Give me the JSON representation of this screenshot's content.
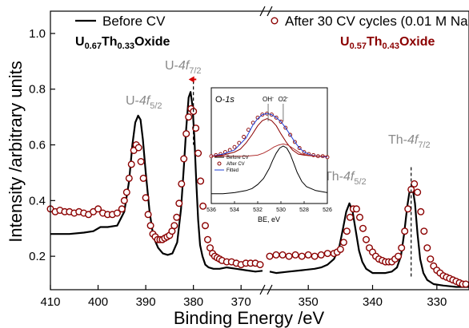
{
  "chart_data": {
    "type": "line",
    "xlabel": "Binding Energy /eV",
    "ylabel": "Intensity /arbitrary units",
    "x_reversed": true,
    "x_axis_break": [
      365.5,
      356
    ],
    "xlim": [
      410,
      325
    ],
    "ylim": [
      0.08,
      1.08
    ],
    "x_ticks": [
      410,
      400,
      390,
      380,
      370,
      350,
      340,
      330
    ],
    "y_ticks": [
      0.2,
      0.4,
      0.6,
      0.8,
      1.0
    ],
    "legend": {
      "position": "top",
      "entries": [
        "Before CV",
        "After 30 CV cycles (0.01 M NaCl)"
      ]
    },
    "series": [
      {
        "name": "Before CV",
        "style": "line",
        "color": "#000000",
        "x": [
          410,
          406,
          403,
          401,
          399.5,
          398,
          396,
          394.5,
          393.5,
          392.8,
          392.2,
          391.6,
          391.1,
          390.6,
          390,
          389.2,
          388.4,
          387.4,
          386.4,
          385.4,
          384.4,
          383.4,
          382.6,
          382,
          381.5,
          381,
          380.6,
          380.2,
          379.8,
          379.4,
          379,
          378.6,
          378.1,
          377.5,
          376.8,
          375.8,
          374.5,
          373,
          371,
          369,
          367,
          365.5,
          356,
          355,
          353,
          351,
          349,
          348,
          347,
          346,
          345.2,
          344.6,
          344.1,
          343.6,
          343.1,
          342.6,
          342.1,
          341.6,
          341,
          340,
          339,
          338,
          337,
          336.2,
          335.6,
          335.1,
          334.6,
          334.2,
          333.8,
          333.4,
          333,
          332.6,
          332.1,
          331.5,
          330.5,
          329,
          327,
          325
        ],
        "y": [
          0.28,
          0.28,
          0.285,
          0.29,
          0.305,
          0.305,
          0.31,
          0.36,
          0.47,
          0.6,
          0.68,
          0.705,
          0.69,
          0.62,
          0.5,
          0.36,
          0.27,
          0.23,
          0.21,
          0.205,
          0.21,
          0.25,
          0.37,
          0.52,
          0.66,
          0.77,
          0.79,
          0.74,
          0.63,
          0.47,
          0.33,
          0.24,
          0.2,
          0.17,
          0.16,
          0.155,
          0.155,
          0.16,
          0.155,
          0.15,
          0.145,
          0.148,
          0.145,
          0.14,
          0.145,
          0.15,
          0.155,
          0.16,
          0.17,
          0.19,
          0.23,
          0.3,
          0.36,
          0.39,
          0.36,
          0.29,
          0.22,
          0.18,
          0.155,
          0.14,
          0.14,
          0.14,
          0.145,
          0.16,
          0.2,
          0.28,
          0.38,
          0.44,
          0.45,
          0.39,
          0.28,
          0.19,
          0.14,
          0.115,
          0.1,
          0.095,
          0.09,
          0.09
        ]
      },
      {
        "name": "After 30 CV cycles (0.01 M NaCl)",
        "style": "open-circles",
        "color": "#8b0000",
        "x": [
          410,
          409,
          408,
          407,
          406,
          405,
          404,
          403,
          402,
          401,
          400,
          399,
          398,
          397,
          396,
          395,
          394.5,
          394,
          393.5,
          393,
          392.5,
          392,
          391.5,
          391,
          390.5,
          390,
          389.5,
          389,
          388.5,
          388,
          387.5,
          387,
          386.5,
          386,
          385.5,
          385,
          384.5,
          384,
          383.5,
          383,
          382.5,
          382,
          381.5,
          381,
          380.5,
          380,
          379.5,
          379,
          378.5,
          378,
          377.5,
          377,
          376.5,
          376,
          375.5,
          375,
          374.5,
          374,
          373,
          372,
          371,
          370,
          369,
          368,
          367,
          366,
          356,
          355,
          354,
          353,
          352,
          351,
          350,
          349,
          348,
          347,
          346,
          345.5,
          345,
          344.5,
          344,
          343.5,
          343,
          342.5,
          342,
          341.5,
          341,
          340.5,
          340,
          339.5,
          339,
          338.5,
          338,
          337.5,
          337,
          336.5,
          336,
          335.5,
          335,
          334.5,
          334,
          333.5,
          333,
          332.5,
          332,
          331.5,
          331,
          330.5,
          330,
          329.5,
          329,
          328.5,
          328,
          327.5,
          327,
          326.5,
          326,
          325.5
        ],
        "y": [
          0.37,
          0.36,
          0.365,
          0.36,
          0.36,
          0.355,
          0.36,
          0.355,
          0.35,
          0.36,
          0.37,
          0.355,
          0.35,
          0.35,
          0.355,
          0.37,
          0.4,
          0.43,
          0.48,
          0.53,
          0.58,
          0.6,
          0.59,
          0.54,
          0.48,
          0.41,
          0.35,
          0.31,
          0.28,
          0.27,
          0.26,
          0.26,
          0.26,
          0.265,
          0.27,
          0.275,
          0.29,
          0.31,
          0.34,
          0.39,
          0.46,
          0.55,
          0.64,
          0.7,
          0.73,
          0.72,
          0.66,
          0.57,
          0.47,
          0.38,
          0.31,
          0.26,
          0.23,
          0.21,
          0.2,
          0.195,
          0.19,
          0.185,
          0.18,
          0.18,
          0.175,
          0.17,
          0.175,
          0.175,
          0.175,
          0.17,
          0.2,
          0.205,
          0.205,
          0.2,
          0.205,
          0.2,
          0.205,
          0.2,
          0.205,
          0.21,
          0.21,
          0.215,
          0.225,
          0.25,
          0.29,
          0.34,
          0.37,
          0.37,
          0.34,
          0.3,
          0.26,
          0.23,
          0.215,
          0.2,
          0.19,
          0.185,
          0.18,
          0.18,
          0.18,
          0.19,
          0.2,
          0.23,
          0.29,
          0.37,
          0.44,
          0.46,
          0.43,
          0.36,
          0.29,
          0.23,
          0.19,
          0.165,
          0.15,
          0.14,
          0.13,
          0.125,
          0.12,
          0.115,
          0.11,
          0.105,
          0.1,
          0.1
        ]
      }
    ],
    "annotations": {
      "before_formula": {
        "U": "U",
        "u_sub": "0.67",
        "Th": "Th",
        "th_sub": "0.33",
        "suffix": "Oxide"
      },
      "after_formula": {
        "U": "U",
        "u_sub": "0.57",
        "Th": "Th",
        "th_sub": "0.43",
        "suffix": "Oxide"
      },
      "peaks": [
        {
          "base": "U-",
          "italic": "4f",
          "sub": "5/2",
          "x": 392
        },
        {
          "base": "U-",
          "italic": "4f",
          "sub": "7/2",
          "x": 380
        },
        {
          "base": "Th-",
          "italic": "4f",
          "sub": "5/2",
          "x": 343.5
        },
        {
          "base": "Th-",
          "italic": "4f",
          "sub": "7/2",
          "x": 334
        }
      ],
      "shift_arrow": {
        "from": 379.4,
        "to": 381
      }
    },
    "inset": {
      "title": "O-1s",
      "xlabel": "BE, eV",
      "xlim": [
        536,
        526
      ],
      "x_ticks": [
        536,
        534,
        532,
        530,
        528,
        526
      ],
      "markers": [
        {
          "label": "OH-",
          "x": 531.1
        },
        {
          "label": "O2-",
          "x": 529.8
        }
      ],
      "legend": [
        "Before CV",
        "After CV",
        "Fitted"
      ],
      "series": [
        {
          "name": "Before CV",
          "style": "line",
          "color": "#000000",
          "x": [
            536,
            535,
            534,
            533,
            532.5,
            532,
            531.5,
            531,
            530.7,
            530.4,
            530.1,
            529.8,
            529.5,
            529.2,
            528.9,
            528.6,
            528.2,
            527.8,
            527,
            526
          ],
          "y": [
            0.05,
            0.05,
            0.06,
            0.08,
            0.1,
            0.14,
            0.2,
            0.3,
            0.38,
            0.45,
            0.5,
            0.52,
            0.5,
            0.44,
            0.35,
            0.26,
            0.17,
            0.12,
            0.08,
            0.06
          ]
        },
        {
          "name": "After CV",
          "style": "open-circles",
          "color": "#8b0000",
          "x": [
            536,
            535.6,
            535.2,
            534.8,
            534.4,
            534,
            533.6,
            533.2,
            532.8,
            532.4,
            532,
            531.6,
            531.2,
            530.8,
            530.4,
            530,
            529.6,
            529.2,
            528.8,
            528.4,
            528,
            527.6,
            527.2,
            526.8,
            526.4,
            526
          ],
          "y": [
            0.42,
            0.43,
            0.44,
            0.46,
            0.48,
            0.51,
            0.55,
            0.61,
            0.68,
            0.75,
            0.8,
            0.83,
            0.84,
            0.83,
            0.8,
            0.76,
            0.7,
            0.63,
            0.56,
            0.5,
            0.46,
            0.44,
            0.43,
            0.42,
            0.42,
            0.41
          ]
        },
        {
          "name": "Fitted",
          "style": "line",
          "color": "#1f3fd6",
          "x": [
            536,
            535,
            534,
            533,
            532.4,
            532,
            531.6,
            531.2,
            530.8,
            530.4,
            530,
            529.6,
            529.2,
            528.8,
            528.4,
            528,
            527.4,
            526.8,
            526
          ],
          "y": [
            0.42,
            0.44,
            0.48,
            0.6,
            0.73,
            0.79,
            0.83,
            0.84,
            0.83,
            0.8,
            0.76,
            0.7,
            0.63,
            0.56,
            0.5,
            0.46,
            0.43,
            0.42,
            0.41
          ]
        },
        {
          "name": "OH- component",
          "style": "line",
          "color": "#8b0000",
          "x": [
            536,
            535,
            534,
            533.5,
            533,
            532.5,
            532,
            531.6,
            531.2,
            530.8,
            530.4,
            530,
            529.5,
            529,
            528.5,
            528,
            527,
            526
          ],
          "y": [
            0.42,
            0.43,
            0.46,
            0.49,
            0.55,
            0.63,
            0.72,
            0.77,
            0.79,
            0.77,
            0.72,
            0.64,
            0.55,
            0.48,
            0.44,
            0.43,
            0.42,
            0.42
          ]
        },
        {
          "name": "O2- component",
          "style": "line",
          "color": "#b03030",
          "x": [
            536,
            533,
            532,
            531.5,
            531,
            530.6,
            530.2,
            529.8,
            529.4,
            529,
            528.6,
            528.2,
            527.6,
            527,
            526
          ],
          "y": [
            0.42,
            0.42,
            0.43,
            0.45,
            0.48,
            0.51,
            0.53,
            0.54,
            0.53,
            0.5,
            0.47,
            0.44,
            0.43,
            0.42,
            0.42
          ]
        }
      ]
    }
  },
  "colors": {
    "before": "#000000",
    "after": "#8b0000",
    "fitted": "#1f3fd6",
    "peak_label": "#8a8a8a",
    "arrow": "#d40000"
  }
}
